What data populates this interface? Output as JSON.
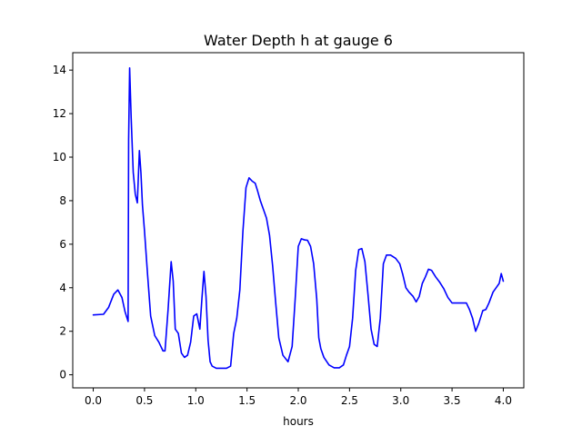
{
  "chart_data": {
    "type": "line",
    "title": "Water Depth h at gauge 6",
    "xlabel": "hours",
    "ylabel": "",
    "xlim": [
      -0.2,
      4.2
    ],
    "ylim": [
      -0.6,
      14.8
    ],
    "xticks": [
      0.0,
      0.5,
      1.0,
      1.5,
      2.0,
      2.5,
      3.0,
      3.5,
      4.0
    ],
    "xtick_labels": [
      "0.0",
      "0.5",
      "1.0",
      "1.5",
      "2.0",
      "2.5",
      "3.0",
      "3.5",
      "4.0"
    ],
    "yticks": [
      0,
      2,
      4,
      6,
      8,
      10,
      12,
      14
    ],
    "ytick_labels": [
      "0",
      "2",
      "4",
      "6",
      "8",
      "10",
      "12",
      "14"
    ],
    "grid": false,
    "legend": "none",
    "series": [
      {
        "color": "#0000ff",
        "x": [
          0.0,
          0.1,
          0.15,
          0.2,
          0.24,
          0.28,
          0.31,
          0.34,
          0.345,
          0.355,
          0.37,
          0.39,
          0.41,
          0.43,
          0.45,
          0.465,
          0.48,
          0.5,
          0.53,
          0.56,
          0.6,
          0.64,
          0.68,
          0.7,
          0.73,
          0.76,
          0.78,
          0.8,
          0.83,
          0.86,
          0.89,
          0.92,
          0.95,
          0.98,
          1.01,
          1.04,
          1.06,
          1.08,
          1.1,
          1.12,
          1.14,
          1.16,
          1.2,
          1.25,
          1.3,
          1.34,
          1.37,
          1.4,
          1.43,
          1.46,
          1.49,
          1.52,
          1.55,
          1.58,
          1.6,
          1.63,
          1.66,
          1.69,
          1.72,
          1.75,
          1.78,
          1.81,
          1.85,
          1.9,
          1.94,
          1.97,
          2.0,
          2.03,
          2.06,
          2.09,
          2.12,
          2.15,
          2.18,
          2.2,
          2.22,
          2.25,
          2.3,
          2.35,
          2.4,
          2.44,
          2.47,
          2.5,
          2.53,
          2.56,
          2.59,
          2.62,
          2.65,
          2.68,
          2.71,
          2.74,
          2.77,
          2.8,
          2.83,
          2.86,
          2.9,
          2.95,
          2.99,
          3.02,
          3.05,
          3.08,
          3.12,
          3.15,
          3.18,
          3.21,
          3.24,
          3.27,
          3.3,
          3.34,
          3.38,
          3.42,
          3.46,
          3.5,
          3.55,
          3.6,
          3.64,
          3.67,
          3.7,
          3.73,
          3.76,
          3.8,
          3.83,
          3.86,
          3.9,
          3.93,
          3.96,
          3.98,
          4.0
        ],
        "y": [
          2.75,
          2.78,
          3.1,
          3.7,
          3.9,
          3.55,
          2.9,
          2.45,
          10.8,
          14.1,
          11.8,
          9.3,
          8.3,
          7.9,
          10.3,
          9.3,
          7.8,
          6.6,
          4.6,
          2.7,
          1.8,
          1.5,
          1.1,
          1.1,
          3.0,
          5.2,
          4.3,
          2.1,
          1.9,
          1.0,
          0.8,
          0.9,
          1.5,
          2.7,
          2.8,
          2.1,
          3.5,
          4.75,
          3.6,
          1.6,
          0.6,
          0.4,
          0.3,
          0.3,
          0.3,
          0.4,
          1.9,
          2.6,
          3.9,
          6.6,
          8.6,
          9.05,
          8.9,
          8.8,
          8.5,
          8.0,
          7.6,
          7.2,
          6.4,
          5.0,
          3.3,
          1.7,
          0.9,
          0.6,
          1.3,
          3.5,
          5.9,
          6.25,
          6.2,
          6.18,
          5.9,
          5.1,
          3.5,
          1.7,
          1.2,
          0.8,
          0.45,
          0.32,
          0.32,
          0.45,
          0.9,
          1.3,
          2.6,
          4.8,
          5.75,
          5.8,
          5.2,
          3.7,
          2.1,
          1.4,
          1.3,
          2.6,
          5.1,
          5.5,
          5.5,
          5.35,
          5.1,
          4.6,
          4.0,
          3.8,
          3.6,
          3.35,
          3.6,
          4.2,
          4.5,
          4.85,
          4.8,
          4.5,
          4.25,
          3.95,
          3.55,
          3.3,
          3.3,
          3.3,
          3.3,
          3.0,
          2.6,
          2.0,
          2.35,
          2.95,
          3.0,
          3.3,
          3.8,
          4.0,
          4.2,
          4.65,
          4.3
        ]
      }
    ]
  }
}
